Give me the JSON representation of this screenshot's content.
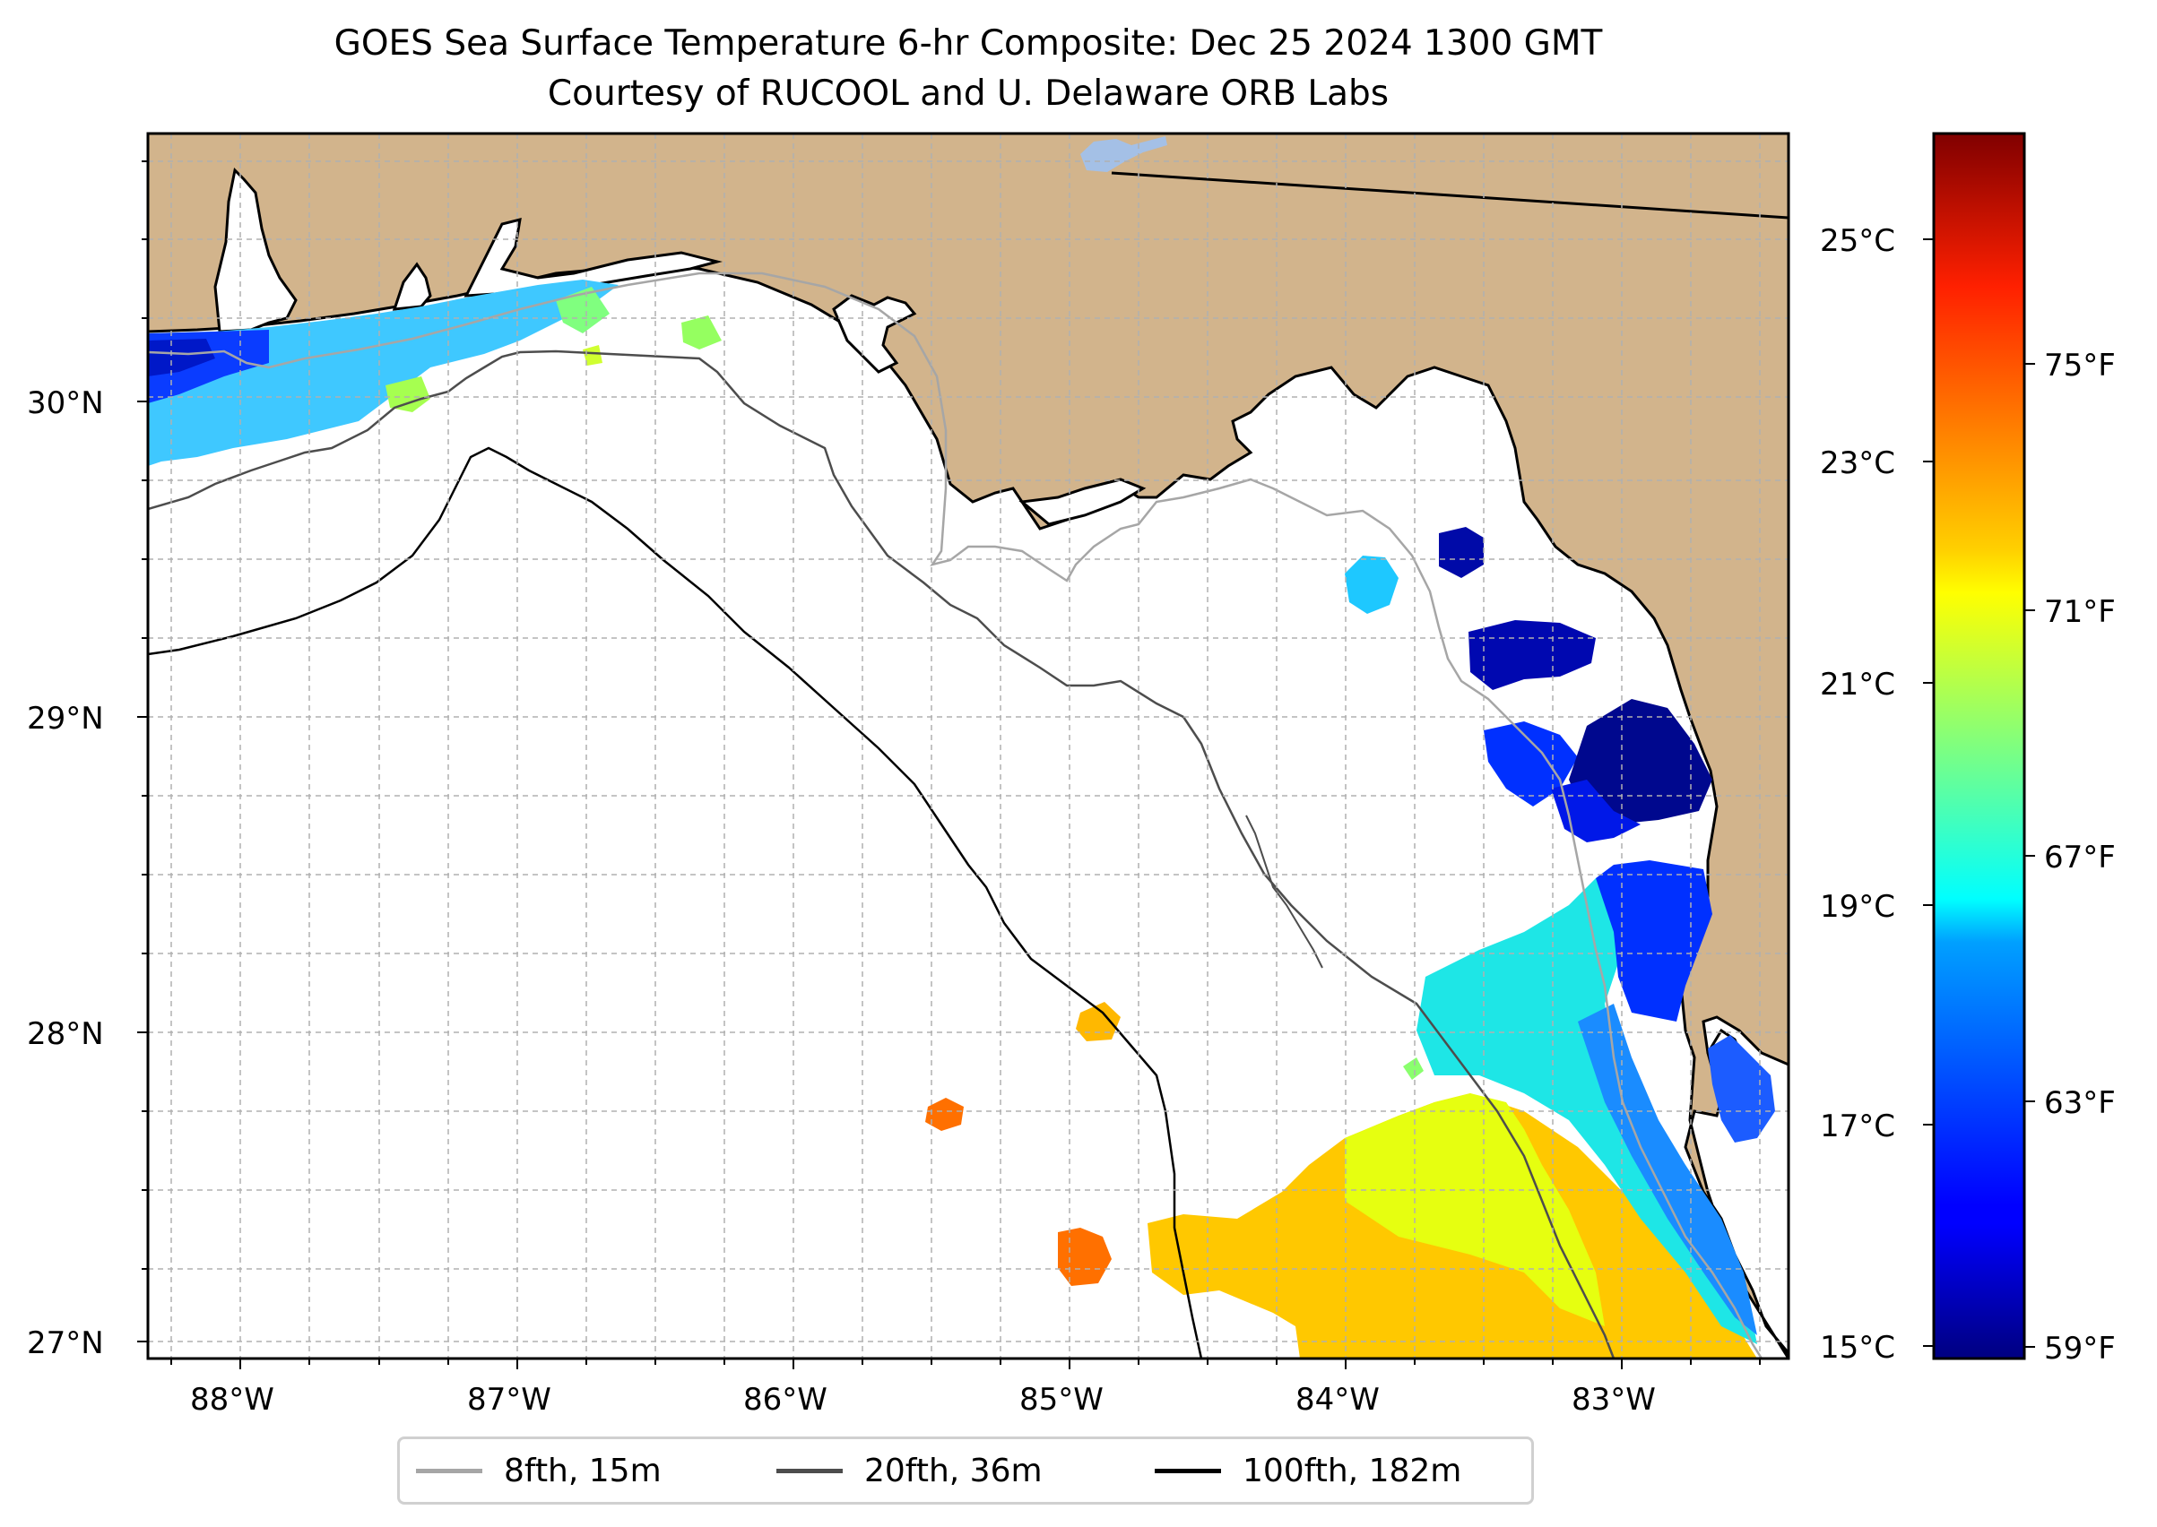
{
  "title": "GOES Sea Surface Temperature 6-hr Composite: Dec 25 2024 1300 GMT",
  "subtitle": "Courtesy of RUCOOL and U. Delaware ORB Labs",
  "map": {
    "lon_range": [
      -88.33,
      -82.39
    ],
    "lat_range": [
      26.93,
      30.85
    ],
    "lon_labels": [
      "88°W",
      "87°W",
      "86°W",
      "85°W",
      "84°W",
      "83°W"
    ],
    "lat_labels": [
      "30°N",
      "29°N",
      "28°N",
      "27°N"
    ],
    "gridlines": true,
    "land_color": "#d2b48c",
    "ocean_color": "#ffffff",
    "lake_color": "#a4c0e6"
  },
  "legend": {
    "placement": "bottom-center",
    "items": [
      {
        "label": "8fth, 15m",
        "color": "#a6a6a6"
      },
      {
        "label": "20fth, 36m",
        "color": "#4d4d4d"
      },
      {
        "label": "100fth, 182m",
        "color": "#000000"
      }
    ]
  },
  "colorbar": {
    "colormap": "jet",
    "range_c": [
      14.9,
      25.9
    ],
    "celsius_labels": [
      "25°C",
      "23°C",
      "21°C",
      "19°C",
      "17°C",
      "15°C"
    ],
    "fahrenheit_labels": [
      "75°F",
      "71°F",
      "67°F",
      "63°F",
      "59°F"
    ]
  }
}
